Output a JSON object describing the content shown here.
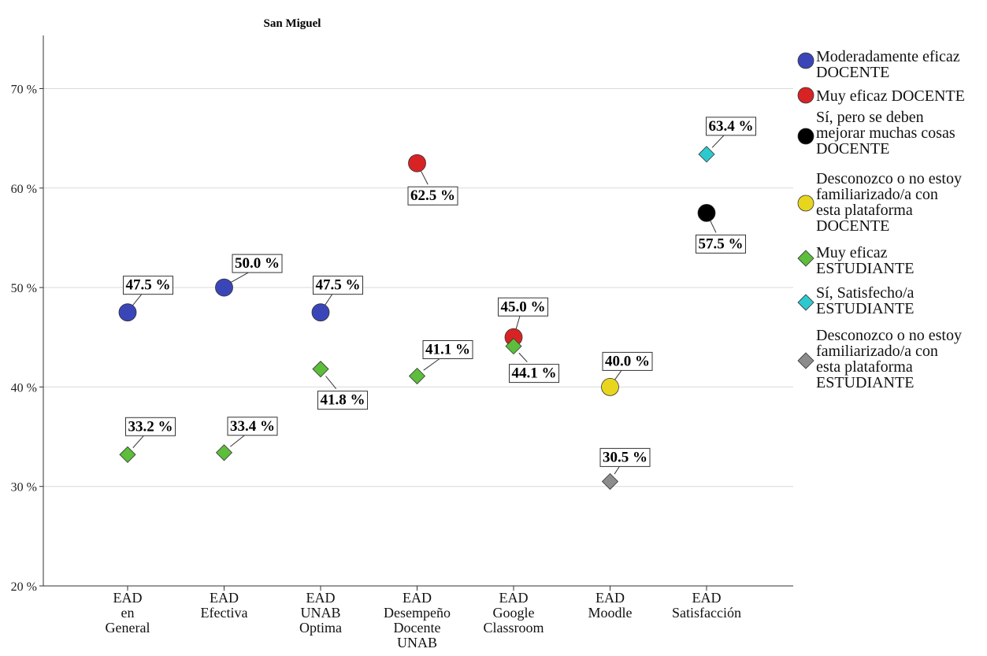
{
  "chart_data": {
    "type": "scatter",
    "title": "San Miguel",
    "xlabel": "",
    "ylabel": "",
    "ylim": [
      20,
      75
    ],
    "yticks": [
      20,
      30,
      40,
      50,
      60,
      70
    ],
    "ytick_labels": [
      "20 %",
      "30 %",
      "40 %",
      "50 %",
      "60 %",
      "70 %"
    ],
    "grid": true,
    "legend_position": "right",
    "categories": [
      [
        "EAD",
        "en",
        "General"
      ],
      [
        "EAD",
        "Efectiva"
      ],
      [
        "EAD",
        "UNAB",
        "Optima"
      ],
      [
        "EAD",
        "Desempeño",
        "Docente",
        "UNAB"
      ],
      [
        "EAD",
        "Google",
        "Classroom"
      ],
      [
        "EAD",
        "Moodle"
      ],
      [
        "EAD",
        "Satisfacción"
      ]
    ],
    "series": [
      {
        "name_lines": [
          "Moderadamente eficaz",
          "DOCENTE"
        ],
        "marker": "circle",
        "color": "#3a46b8",
        "points": [
          {
            "cat": 0,
            "y": 47.5,
            "label": "47.5 %"
          },
          {
            "cat": 1,
            "y": 50.0,
            "label": "50.0 %"
          },
          {
            "cat": 2,
            "y": 47.5,
            "label": "47.5 %"
          }
        ]
      },
      {
        "name_lines": [
          "Muy eficaz DOCENTE"
        ],
        "marker": "circle",
        "color": "#d82325",
        "points": [
          {
            "cat": 3,
            "y": 62.5,
            "label": "62.5 %"
          },
          {
            "cat": 4,
            "y": 45.0,
            "label": "45.0 %"
          }
        ]
      },
      {
        "name_lines": [
          "Sí, pero se deben",
          "mejorar muchas cosas",
          "DOCENTE"
        ],
        "marker": "circle",
        "color": "#000000",
        "points": [
          {
            "cat": 6,
            "y": 57.5,
            "label": "57.5 %"
          }
        ]
      },
      {
        "name_lines": [
          "Desconozco o no estoy",
          "familiarizado/a con",
          "esta plataforma",
          "DOCENTE"
        ],
        "marker": "circle",
        "color": "#e8d61e",
        "points": [
          {
            "cat": 5,
            "y": 40.0,
            "label": "40.0 %"
          }
        ]
      },
      {
        "name_lines": [
          "Muy eficaz",
          "ESTUDIANTE"
        ],
        "marker": "diamond",
        "color": "#5dbd3c",
        "points": [
          {
            "cat": 0,
            "y": 33.2,
            "label": "33.2 %"
          },
          {
            "cat": 1,
            "y": 33.4,
            "label": "33.4 %"
          },
          {
            "cat": 2,
            "y": 41.8,
            "label": "41.8 %"
          },
          {
            "cat": 3,
            "y": 41.1,
            "label": "41.1 %"
          },
          {
            "cat": 4,
            "y": 44.1,
            "label": "44.1 %"
          }
        ]
      },
      {
        "name_lines": [
          "Sí, Satisfecho/a",
          "ESTUDIANTE"
        ],
        "marker": "diamond",
        "color": "#2ec9cf",
        "points": [
          {
            "cat": 6,
            "y": 63.4,
            "label": "63.4 %"
          }
        ]
      },
      {
        "name_lines": [
          "Desconozco o no estoy",
          "familiarizado/a con",
          "esta plataforma",
          "ESTUDIANTE"
        ],
        "marker": "diamond",
        "color": "#8c8c8c",
        "points": [
          {
            "cat": 5,
            "y": 30.5,
            "label": "30.5 %"
          }
        ]
      }
    ]
  }
}
